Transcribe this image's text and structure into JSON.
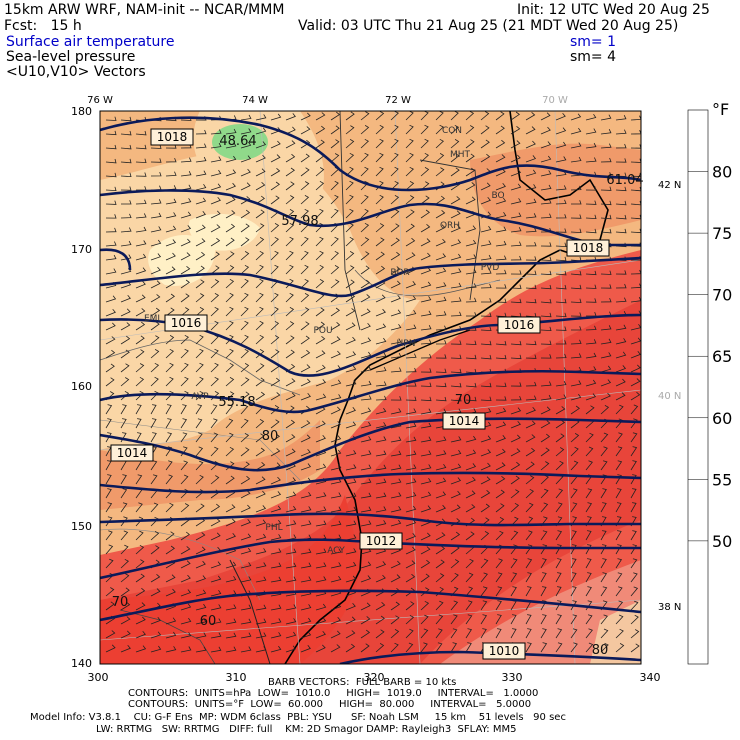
{
  "header": {
    "title_left": "15km ARW WRF, NAM-init -- NCAR/MMM",
    "fcst": "Fcst:   15 h",
    "init": "Init: 12 UTC Wed 20 Aug 25",
    "valid": "Valid: 03 UTC Thu 21 Aug 25 (21 MDT Wed 20 Aug 25)",
    "field1": "Surface air temperature",
    "field2": "Sea-level pressure",
    "field3": "<U10,V10> Vectors",
    "sm1": "sm= 1",
    "sm2": "sm= 4"
  },
  "axes": {
    "top_lon": [
      "76 W",
      "74 W",
      "72 W",
      "70 W"
    ],
    "right_lat": [
      "42 N",
      "40 N",
      "38 N"
    ],
    "left_y": [
      "180",
      "170",
      "160",
      "150",
      "140"
    ],
    "bottom_x": [
      "300",
      "310",
      "320",
      "330",
      "340"
    ]
  },
  "colorbar": {
    "unit": "°F",
    "labels": [
      "80",
      "75",
      "70",
      "65",
      "60",
      "55",
      "50"
    ],
    "colors": [
      "#f4c7a0",
      "#f08a78",
      "#e8453a",
      "#ef5a4a",
      "#f09a6a",
      "#f4b880",
      "#fad6a6",
      "#fff6c8",
      "#90d98a"
    ]
  },
  "map_labels": {
    "pressure": [
      "1018",
      "1016",
      "1016",
      "1014",
      "1014",
      "1012",
      "1010",
      "1018"
    ],
    "temps": [
      "48.64",
      "57.98",
      "55.18",
      "61.04",
      "70",
      "80",
      "80",
      "70",
      "60"
    ],
    "stations": [
      "CON",
      "MHT",
      "BO",
      "ORH",
      "PVD",
      "BDR",
      "POU",
      "HPN",
      "AVP",
      "ACY",
      "PHL",
      "EMI"
    ]
  },
  "footer": {
    "barb": "BARB VECTORS:  FULL BARB = 10 kts",
    "contours1": "CONTOURS:  UNITS=hPa  LOW=  1010.0     HIGH=  1019.0     INTERVAL=   1.0000",
    "contours2": "CONTOURS:  UNITS=°F  LOW=  60.000     HIGH=  80.000     INTERVAL=   5.0000",
    "model1": "Model Info: V3.8.1    CU: G-F Ens  MP: WDM 6class  PBL: YSU      SF: Noah LSM     15 km    51 levels   90 sec",
    "model2": "LW: RRTMG   SW: RRTMG   DIFF: full    KM: 2D Smagor DAMP: Rayleigh3  SFLAY: MM5"
  }
}
